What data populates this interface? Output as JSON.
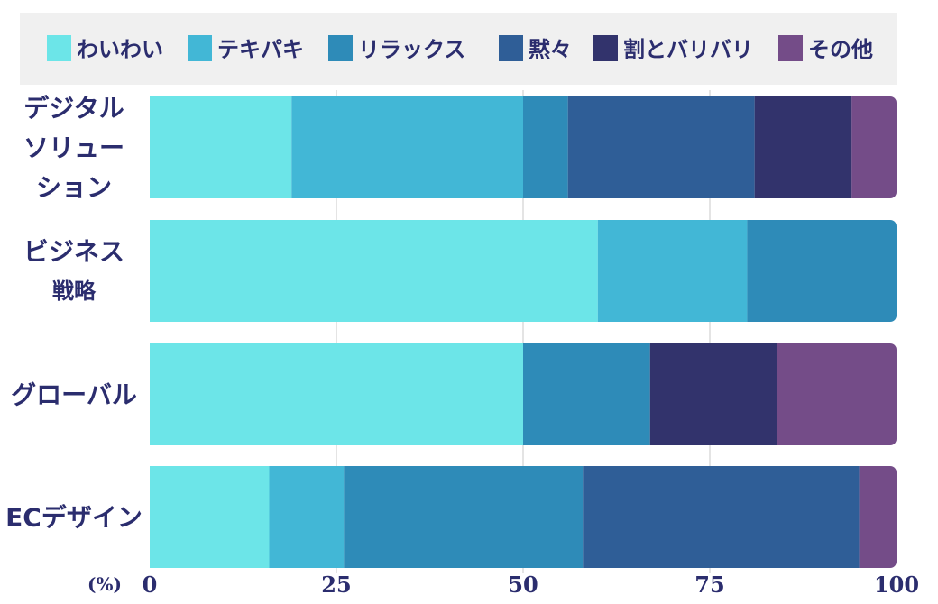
{
  "chart_data": {
    "type": "bar",
    "orientation": "horizontal",
    "stacked": true,
    "unit_label": "(%)",
    "xlim": [
      0,
      100
    ],
    "x_ticks": [
      "0",
      "25",
      "50",
      "75",
      "100"
    ],
    "grid": true,
    "legend_position": "top",
    "categories": [
      [
        "デジタル",
        "ソリュー",
        "ション"
      ],
      [
        "ビジネス",
        "戦略"
      ],
      [
        "グローバル"
      ],
      [
        "ECデザイン"
      ]
    ],
    "series": [
      {
        "name": "わいわい",
        "color": "#6ce5e8",
        "values": [
          19,
          60,
          50,
          16
        ]
      },
      {
        "name": "テキパキ",
        "color": "#42b7d6",
        "values": [
          31,
          20,
          0,
          10
        ]
      },
      {
        "name": "リラックス",
        "color": "#2e8bb8",
        "values": [
          6,
          20,
          17,
          32
        ]
      },
      {
        "name": "黙々",
        "color": "#2f5e97",
        "values": [
          25,
          0,
          0,
          37
        ]
      },
      {
        "name": "割とバリバリ",
        "color": "#32336c",
        "values": [
          13,
          0,
          17,
          0
        ]
      },
      {
        "name": "その他",
        "color": "#744c88",
        "values": [
          6,
          0,
          16,
          5
        ]
      }
    ]
  }
}
